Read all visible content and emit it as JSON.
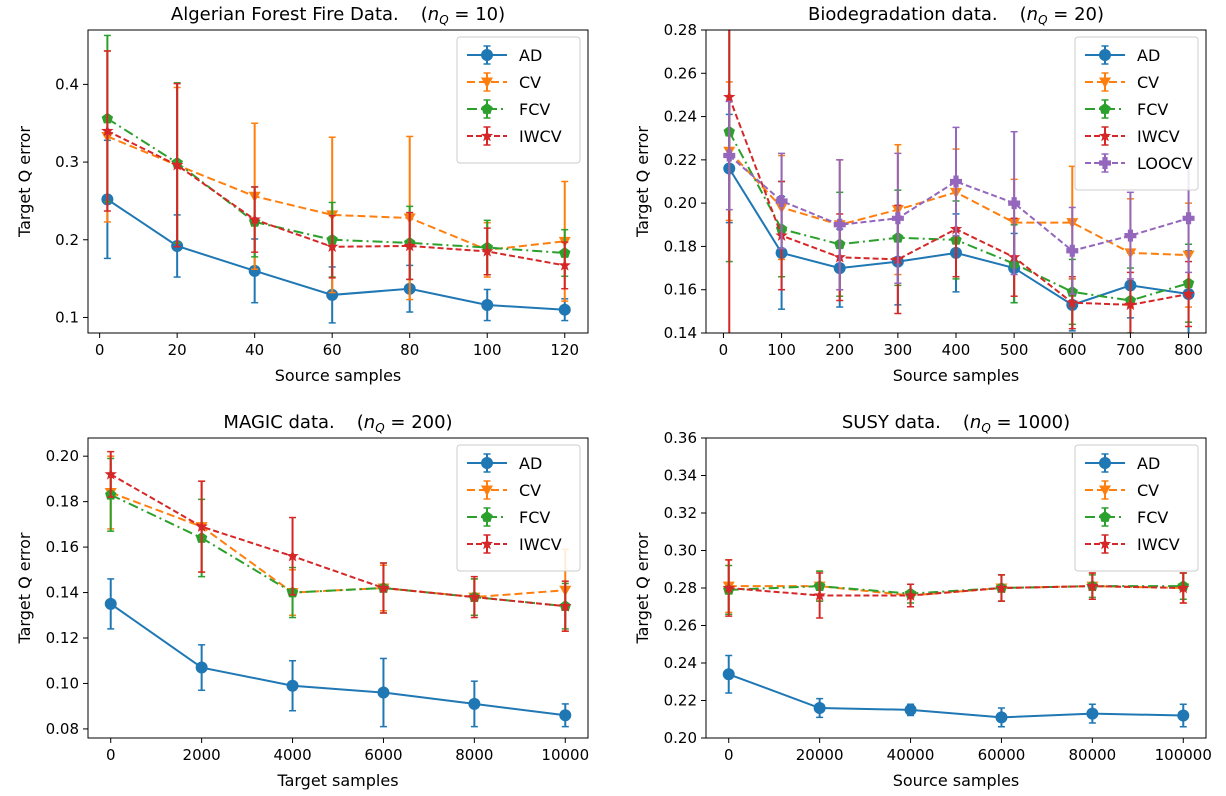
{
  "colors": {
    "AD": "#1f77b4",
    "CV": "#ff7f0e",
    "FCV": "#2ca02c",
    "IWCV": "#d62728",
    "LOOCV": "#9467bd"
  },
  "chart_data": [
    {
      "type": "line",
      "title": "Algerian Forest Fire Data.",
      "title_math": "n_Q = 10",
      "xlabel": "Source samples",
      "ylabel": "Target Q error",
      "xlim": [
        -3,
        126
      ],
      "ylim": [
        0.08,
        0.47
      ],
      "xticks": [
        0,
        20,
        40,
        60,
        80,
        100,
        120
      ],
      "xtick_labels": [
        "0",
        "20",
        "40",
        "60",
        "80",
        "100",
        "120"
      ],
      "yticks": [
        0.1,
        0.2,
        0.3,
        0.4
      ],
      "ytick_labels": [
        "0.1",
        "0.2",
        "0.3",
        "0.4"
      ],
      "legend_position": "top-right",
      "x": [
        2,
        20,
        40,
        60,
        80,
        100,
        120
      ],
      "series": [
        {
          "name": "AD",
          "values": [
            0.252,
            0.192,
            0.16,
            0.129,
            0.137,
            0.116,
            0.11
          ],
          "err": [
            0.076,
            0.04,
            0.041,
            0.036,
            0.03,
            0.02,
            0.014
          ]
        },
        {
          "name": "CV",
          "values": [
            0.333,
            0.296,
            0.256,
            0.232,
            0.228,
            0.187,
            0.198
          ],
          "err": [
            0.11,
            0.1,
            0.094,
            0.1,
            0.105,
            0.035,
            0.077
          ]
        },
        {
          "name": "FCV",
          "values": [
            0.356,
            0.299,
            0.223,
            0.2,
            0.196,
            0.19,
            0.183
          ],
          "err": [
            0.107,
            0.103,
            0.045,
            0.048,
            0.047,
            0.035,
            0.03
          ]
        },
        {
          "name": "IWCV",
          "values": [
            0.34,
            0.296,
            0.226,
            0.191,
            0.192,
            0.185,
            0.167
          ],
          "err": [
            0.103,
            0.105,
            0.042,
            0.04,
            0.043,
            0.03,
            0.03
          ]
        }
      ]
    },
    {
      "type": "line",
      "title": "Biodegradation data.",
      "title_math": "n_Q = 20",
      "xlabel": "Source samples",
      "ylabel": "Target Q error",
      "xlim": [
        -30,
        830
      ],
      "ylim": [
        0.14,
        0.28
      ],
      "xticks": [
        0,
        100,
        200,
        300,
        400,
        500,
        600,
        700,
        800
      ],
      "xtick_labels": [
        "0",
        "100",
        "200",
        "300",
        "400",
        "500",
        "600",
        "700",
        "800"
      ],
      "yticks": [
        0.14,
        0.16,
        0.18,
        0.2,
        0.22,
        0.24,
        0.26,
        0.28
      ],
      "ytick_labels": [
        "0.14",
        "0.16",
        "0.18",
        "0.20",
        "0.22",
        "0.24",
        "0.26",
        "0.28"
      ],
      "legend_position": "top-right",
      "x": [
        10,
        100,
        200,
        300,
        400,
        500,
        600,
        700,
        800
      ],
      "series": [
        {
          "name": "AD",
          "values": [
            0.216,
            0.177,
            0.17,
            0.173,
            0.177,
            0.17,
            0.153,
            0.162,
            0.158
          ],
          "err": [
            0.025,
            0.026,
            0.018,
            0.02,
            0.018,
            0.016,
            0.012,
            0.015,
            0.02
          ]
        },
        {
          "name": "CV",
          "values": [
            0.224,
            0.198,
            0.19,
            0.197,
            0.205,
            0.191,
            0.191,
            0.177,
            0.176
          ],
          "err": [
            0.032,
            0.024,
            0.03,
            0.03,
            0.02,
            0.02,
            0.026,
            0.025,
            0.024
          ]
        },
        {
          "name": "FCV",
          "values": [
            0.233,
            0.188,
            0.181,
            0.184,
            0.183,
            0.172,
            0.159,
            0.155,
            0.163
          ],
          "err": [
            0.06,
            0.022,
            0.024,
            0.022,
            0.018,
            0.018,
            0.015,
            0.015,
            0.018
          ]
        },
        {
          "name": "IWCV",
          "values": [
            0.249,
            0.185,
            0.175,
            0.174,
            0.188,
            0.175,
            0.154,
            0.153,
            0.158
          ],
          "err": [
            0.11,
            0.025,
            0.02,
            0.025,
            0.022,
            0.018,
            0.012,
            0.015,
            0.015
          ]
        },
        {
          "name": "LOOCV",
          "values": [
            0.222,
            0.201,
            0.19,
            0.193,
            0.21,
            0.2,
            0.178,
            0.185,
            0.193
          ],
          "err": [
            0.025,
            0.022,
            0.03,
            0.03,
            0.025,
            0.033,
            0.02,
            0.02,
            0.025
          ]
        }
      ]
    },
    {
      "type": "line",
      "title": "MAGIC data.",
      "title_math": "n_Q = 200",
      "xlabel": "Target samples",
      "ylabel": "Target Q error",
      "xlim": [
        -500,
        10500
      ],
      "ylim": [
        0.076,
        0.208
      ],
      "xticks": [
        0,
        2000,
        4000,
        6000,
        8000,
        10000
      ],
      "xtick_labels": [
        "0",
        "2000",
        "4000",
        "6000",
        "8000",
        "10000"
      ],
      "yticks": [
        0.08,
        0.1,
        0.12,
        0.14,
        0.16,
        0.18,
        0.2
      ],
      "ytick_labels": [
        "0.08",
        "0.10",
        "0.12",
        "0.14",
        "0.16",
        "0.18",
        "0.20"
      ],
      "legend_position": "top-right",
      "x": [
        0,
        2000,
        4000,
        6000,
        8000,
        10000
      ],
      "series": [
        {
          "name": "AD",
          "values": [
            0.135,
            0.107,
            0.099,
            0.096,
            0.091,
            0.086
          ],
          "err": [
            0.011,
            0.01,
            0.011,
            0.015,
            0.01,
            0.005
          ]
        },
        {
          "name": "CV",
          "values": [
            0.184,
            0.169,
            0.14,
            0.142,
            0.138,
            0.141
          ],
          "err": [
            0.016,
            0.02,
            0.01,
            0.01,
            0.008,
            0.018
          ]
        },
        {
          "name": "FCV",
          "values": [
            0.183,
            0.164,
            0.14,
            0.142,
            0.138,
            0.134
          ],
          "err": [
            0.016,
            0.017,
            0.011,
            0.011,
            0.008,
            0.01
          ]
        },
        {
          "name": "IWCV",
          "values": [
            0.192,
            0.169,
            0.156,
            0.142,
            0.138,
            0.134
          ],
          "err": [
            0.01,
            0.02,
            0.017,
            0.011,
            0.009,
            0.011
          ]
        }
      ]
    },
    {
      "type": "line",
      "title": "SUSY data.",
      "title_math": "n_Q = 1000",
      "xlabel": "Source samples",
      "ylabel": "Target Q error",
      "xlim": [
        -5000,
        105000
      ],
      "ylim": [
        0.2,
        0.36
      ],
      "xticks": [
        0,
        20000,
        40000,
        60000,
        80000,
        100000
      ],
      "xtick_labels": [
        "0",
        "20000",
        "40000",
        "60000",
        "80000",
        "100000"
      ],
      "yticks": [
        0.2,
        0.22,
        0.24,
        0.26,
        0.28,
        0.3,
        0.32,
        0.34,
        0.36
      ],
      "ytick_labels": [
        "0.20",
        "0.22",
        "0.24",
        "0.26",
        "0.28",
        "0.30",
        "0.32",
        "0.34",
        "0.36"
      ],
      "legend_position": "top-right",
      "x": [
        0,
        20000,
        40000,
        60000,
        80000,
        100000
      ],
      "series": [
        {
          "name": "AD",
          "values": [
            0.234,
            0.216,
            0.215,
            0.211,
            0.213,
            0.212
          ],
          "err": [
            0.01,
            0.005,
            0.003,
            0.005,
            0.005,
            0.006
          ]
        },
        {
          "name": "CV",
          "values": [
            0.281,
            0.281,
            0.276,
            0.28,
            0.281,
            0.28
          ],
          "err": [
            0.014,
            0.008,
            0.006,
            0.007,
            0.007,
            0.008
          ]
        },
        {
          "name": "FCV",
          "values": [
            0.279,
            0.281,
            0.277,
            0.28,
            0.281,
            0.281
          ],
          "err": [
            0.013,
            0.008,
            0.005,
            0.007,
            0.006,
            0.007
          ]
        },
        {
          "name": "IWCV",
          "values": [
            0.28,
            0.276,
            0.276,
            0.28,
            0.281,
            0.28
          ],
          "err": [
            0.015,
            0.012,
            0.006,
            0.007,
            0.007,
            0.008
          ]
        }
      ]
    }
  ]
}
